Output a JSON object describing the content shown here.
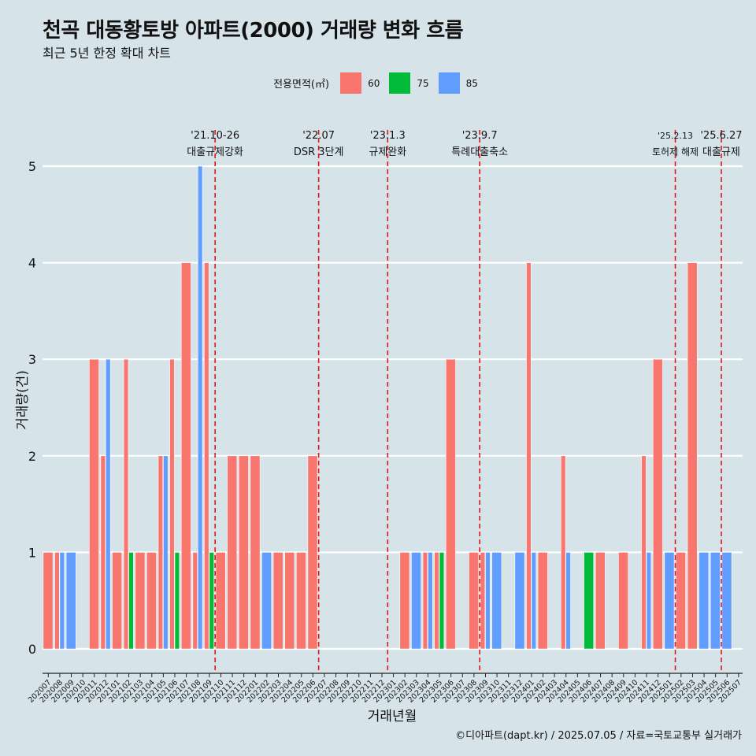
{
  "title": "천곡 대동황토방 아파트(2000) 거래량 변화 흐름",
  "subtitle": "최근 5년 한정 확대 차트",
  "caption": "©디아파트(dapt.kr) / 2025.07.05 / 자료=국토교통부 실거래가",
  "legend": {
    "title": "전용면적(㎡)",
    "items": [
      {
        "label": "60",
        "color": "#F8766D"
      },
      {
        "label": "75",
        "color": "#00BA38"
      },
      {
        "label": "85",
        "color": "#619CFF"
      }
    ]
  },
  "chart_data": {
    "type": "bar",
    "title": "천곡 대동황토방 아파트(2000) 거래량 변화 흐름",
    "subtitle": "최근 5년 한정 확대 차트",
    "xlabel": "거래년월",
    "ylabel": "거래량(건)",
    "ylim": [
      0,
      5
    ],
    "yticks": [
      0,
      1,
      2,
      3,
      4,
      5
    ],
    "grid": true,
    "legend_position": "top",
    "categories": [
      "202007",
      "202008",
      "202009",
      "202010",
      "202011",
      "202012",
      "202101",
      "202102",
      "202103",
      "202104",
      "202105",
      "202106",
      "202107",
      "202108",
      "202109",
      "202110",
      "202111",
      "202112",
      "202201",
      "202202",
      "202203",
      "202204",
      "202205",
      "202206",
      "202207",
      "202208",
      "202209",
      "202210",
      "202211",
      "202212",
      "202301",
      "202302",
      "202303",
      "202304",
      "202305",
      "202306",
      "202307",
      "202308",
      "202309",
      "202310",
      "202311",
      "202312",
      "202401",
      "202402",
      "202403",
      "202404",
      "202405",
      "202406",
      "202407",
      "202408",
      "202409",
      "202410",
      "202411",
      "202412",
      "202501",
      "202502",
      "202503",
      "202504",
      "202505",
      "202506",
      "202507"
    ],
    "series": [
      {
        "name": "60",
        "color": "#F8766D",
        "values": [
          1,
          1,
          0,
          0,
          3,
          2,
          1,
          3,
          1,
          1,
          2,
          3,
          4,
          1,
          4,
          1,
          2,
          2,
          2,
          0,
          1,
          1,
          1,
          2,
          0,
          0,
          0,
          0,
          0,
          0,
          0,
          1,
          0,
          1,
          1,
          3,
          0,
          1,
          1,
          0,
          0,
          0,
          4,
          1,
          0,
          2,
          0,
          0,
          1,
          0,
          1,
          0,
          2,
          3,
          0,
          1,
          4,
          0,
          0,
          0,
          0
        ]
      },
      {
        "name": "75",
        "color": "#00BA38",
        "values": [
          0,
          0,
          0,
          0,
          0,
          0,
          0,
          1,
          0,
          0,
          0,
          1,
          0,
          0,
          1,
          0,
          0,
          0,
          0,
          0,
          0,
          0,
          0,
          0,
          0,
          0,
          0,
          0,
          0,
          0,
          0,
          0,
          0,
          0,
          1,
          0,
          0,
          0,
          0,
          0,
          0,
          0,
          0,
          0,
          0,
          0,
          0,
          1,
          0,
          0,
          0,
          0,
          0,
          0,
          0,
          0,
          0,
          0,
          0,
          0,
          0
        ]
      },
      {
        "name": "85",
        "color": "#619CFF",
        "values": [
          0,
          1,
          1,
          0,
          0,
          3,
          0,
          0,
          0,
          0,
          2,
          0,
          0,
          5,
          0,
          0,
          0,
          0,
          0,
          1,
          0,
          0,
          0,
          0,
          0,
          0,
          0,
          0,
          0,
          0,
          0,
          0,
          1,
          1,
          0,
          0,
          0,
          0,
          1,
          1,
          0,
          1,
          1,
          0,
          0,
          1,
          0,
          0,
          0,
          0,
          0,
          0,
          1,
          0,
          1,
          0,
          0,
          1,
          1,
          1,
          0
        ]
      }
    ],
    "annotations": [
      {
        "date": "'21.10-26",
        "label": "대출규제강화",
        "at": "202110"
      },
      {
        "date": "'22.07",
        "label": "DSR 3단계",
        "at": "202207"
      },
      {
        "date": "'23.1.3",
        "label": "규제완화",
        "at": "202301"
      },
      {
        "date": "'23.9.7",
        "label": "특례대출축소",
        "at": "202309"
      },
      {
        "date": "'25.2.13",
        "label": "토허제 해제",
        "at": "202502"
      },
      {
        "date": "'25.6.27",
        "label": "대출규제",
        "at": "202506"
      }
    ]
  }
}
